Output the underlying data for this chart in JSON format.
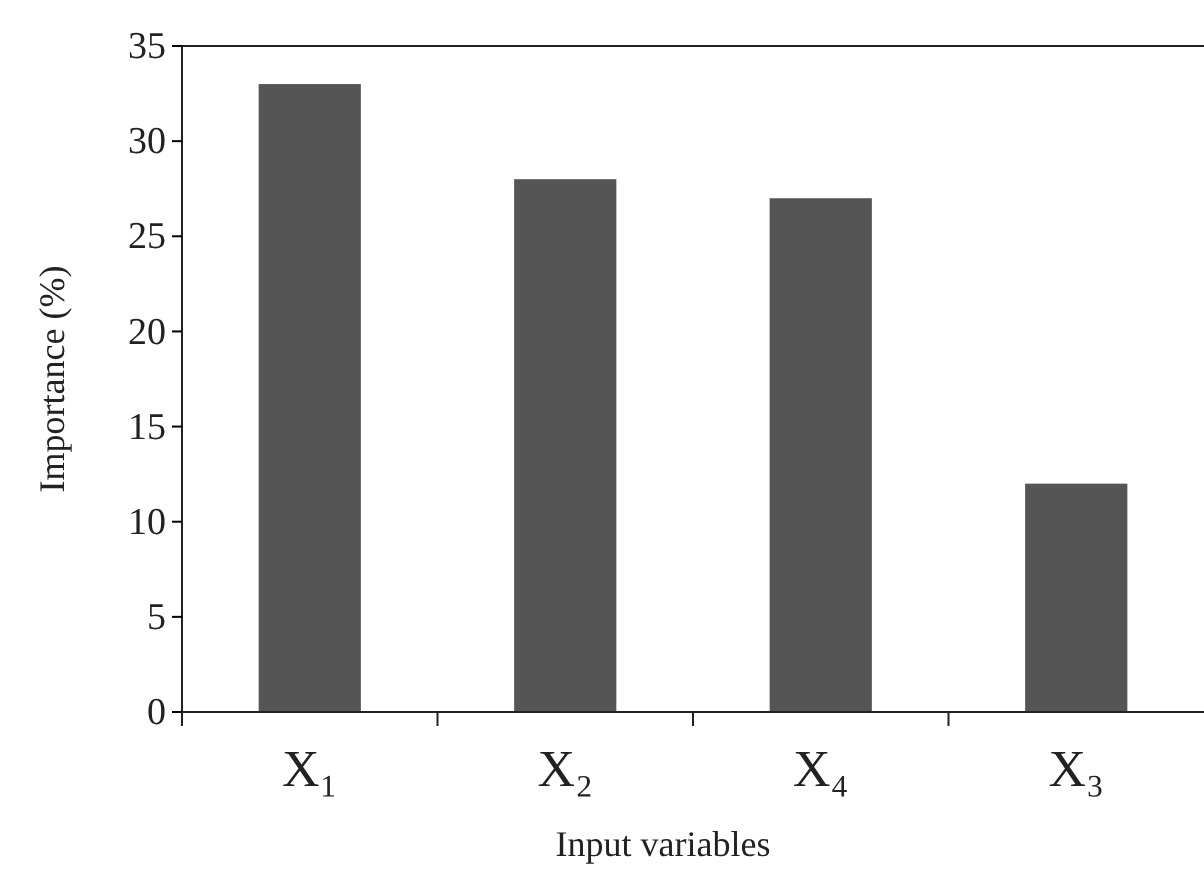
{
  "chart_data": {
    "type": "bar",
    "xlabel": "Input variables",
    "ylabel": "Importance  (%)",
    "categories": [
      "X₁",
      "X₂",
      "X₄",
      "X₃"
    ],
    "values": [
      33,
      28,
      27,
      12
    ],
    "color": "#555555",
    "ylim": [
      0,
      35
    ],
    "yticks": [
      0,
      5,
      10,
      15,
      20,
      25,
      30,
      35
    ],
    "grid": false
  }
}
